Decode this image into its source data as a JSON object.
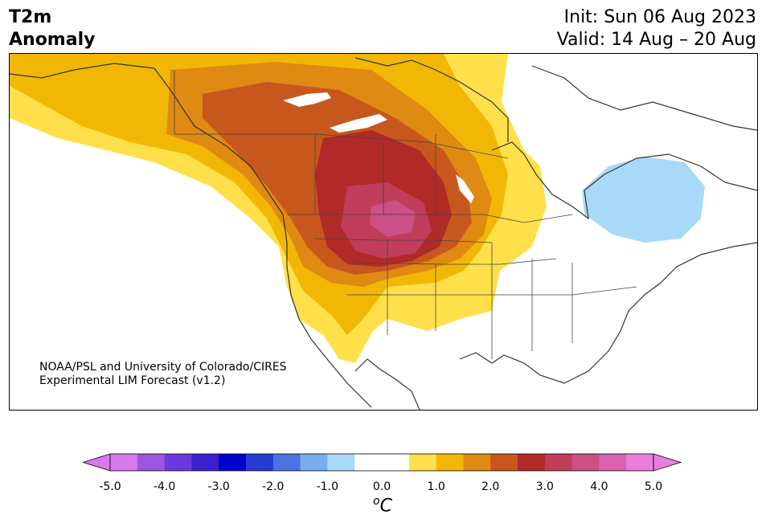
{
  "header": {
    "title_line1": "T2m",
    "title_line2": "Anomaly",
    "init": "Init: Sun 06 Aug 2023",
    "valid": "Valid: 14 Aug – 20 Aug"
  },
  "credit": {
    "line1": "NOAA/PSL and University of Colorado/CIRES",
    "line2": "Experimental LIM Forecast (v1.2)"
  },
  "colorbar": {
    "unit_base": "C",
    "unit_sup": "o",
    "tick_labels": [
      "-5.0",
      "-4.0",
      "-3.0",
      "-2.0",
      "-1.0",
      "0.0",
      "1.0",
      "2.0",
      "3.0",
      "4.0",
      "5.0"
    ],
    "colors": [
      "#d978ed",
      "#9b55df",
      "#6a38dc",
      "#3a1fd0",
      "#0000cc",
      "#2a3ad6",
      "#4d72e3",
      "#78aef0",
      "#a9d9f9",
      "#ffffff",
      "#ffffff",
      "#ffe04a",
      "#f2b705",
      "#df8a12",
      "#c8571d",
      "#b02a27",
      "#c13d5c",
      "#cc4f86",
      "#da63b0",
      "#ea7edb"
    ],
    "under_color": "#d978ed",
    "over_color": "#ea7edb"
  }
}
